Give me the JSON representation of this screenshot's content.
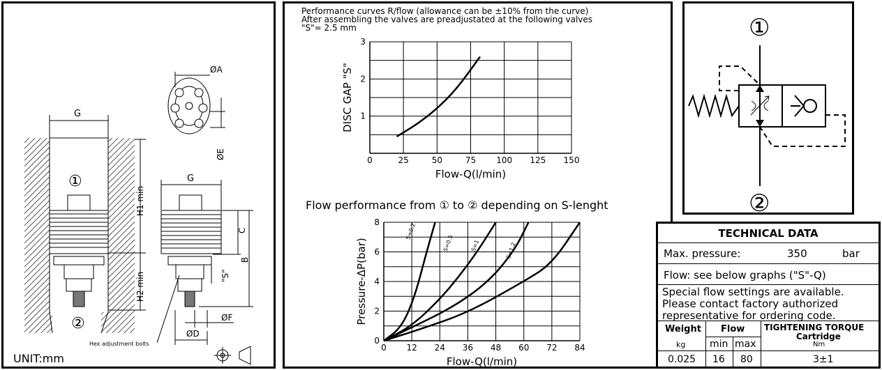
{
  "left_panel": {
    "labels": {
      "g_top": "G",
      "g_right": "G",
      "phi_a": "ØA",
      "phi_e": "ØE",
      "phi_f": "ØF",
      "phi_d": "ØD",
      "h1": "H1 min",
      "h2": "H2 min",
      "c": "C",
      "b": "B",
      "s": "\"S\"",
      "port1": "①",
      "port2": "②",
      "callout": "Hex adjustment bolts",
      "unit": "UNIT:mm"
    }
  },
  "header": {
    "line1": "Performance curves R/flow (allowance can be ±10% from the curve)",
    "line2": "After assembling the valves are preadjustated at the following valves",
    "line3": "\"S\"= 2.5 mm"
  },
  "chart_data": [
    {
      "type": "line",
      "title": "",
      "xlabel": "Flow-Q(l/min)",
      "ylabel": "DISC GAP \"S\"",
      "xlim": [
        0,
        150
      ],
      "ylim": [
        0,
        3
      ],
      "xticks": [
        0,
        25,
        50,
        75,
        100,
        125,
        150
      ],
      "yticks": [
        1,
        2,
        3
      ],
      "grid": true,
      "series": [
        {
          "x": [
            20,
            35,
            50,
            65,
            82
          ],
          "y": [
            0.45,
            0.78,
            1.2,
            1.75,
            2.6
          ]
        }
      ]
    },
    {
      "type": "line",
      "title": "Flow performance from ① to ② depending on S-lenght",
      "xlabel": "Flow-Q(l/min)",
      "ylabel": "Pressure-ΔP(bar)",
      "xlim": [
        0,
        84
      ],
      "ylim": [
        0,
        8
      ],
      "xticks": [
        0,
        12,
        24,
        36,
        48,
        60,
        72,
        84
      ],
      "yticks": [
        0,
        2,
        4,
        6,
        8
      ],
      "grid": true,
      "series": [
        {
          "name": "S=0.2",
          "x": [
            0,
            6,
            10,
            14,
            18,
            22
          ],
          "y": [
            0,
            0.7,
            1.7,
            3.4,
            5.8,
            8
          ]
        },
        {
          "name": "S=0.5",
          "x": [
            0,
            12,
            24,
            32,
            40,
            48
          ],
          "y": [
            0,
            1.0,
            2.8,
            4.3,
            6.0,
            8
          ]
        },
        {
          "name": "S=1",
          "x": [
            0,
            12,
            30,
            45,
            56,
            62
          ],
          "y": [
            0,
            0.9,
            2.3,
            4.0,
            6.1,
            8
          ]
        },
        {
          "name": "S=1.2",
          "x": [
            0,
            16,
            36,
            60,
            72,
            84
          ],
          "y": [
            0,
            0.8,
            1.9,
            4.0,
            5.2,
            8
          ]
        }
      ]
    }
  ],
  "symbol_panel": {
    "port1": "①",
    "port2": "②"
  },
  "technical_data": {
    "title": "TECHNICAL DATA",
    "max_pressure_label": "Max. pressure:",
    "max_pressure_value": "350",
    "max_pressure_unit": "bar",
    "flow_note": "Flow: see below graphs (\"S\"-Q)",
    "special_line1": "Special flow settings are available.",
    "special_line2": "Please contact factory authorized",
    "special_line3": "representative for ordering code.",
    "col_weight": "Weight",
    "col_weight_unit": "kg",
    "col_flow": "Flow",
    "col_min": "min",
    "col_max": "max",
    "col_torque": "TIGHTENING TORQUE",
    "col_torque_sub": "Cartridge",
    "col_torque_unit": "Nm",
    "val_weight": "0.025",
    "val_min": "16",
    "val_max": "80",
    "val_torque": "3±1"
  }
}
